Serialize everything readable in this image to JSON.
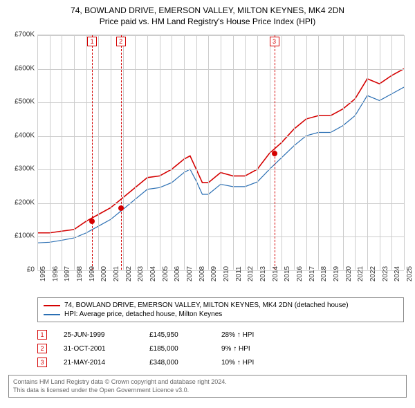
{
  "title": "74, BOWLAND DRIVE, EMERSON VALLEY, MILTON KEYNES, MK4 2DN",
  "subtitle": "Price paid vs. HM Land Registry's House Price Index (HPI)",
  "chart": {
    "type": "line",
    "background_color": "#ffffff",
    "grid_color": "#cccccc",
    "colors": {
      "series1": "#d40000",
      "series2": "#2b6fb3",
      "marker_border": "#d40000"
    },
    "line_width": {
      "series1": 1.6,
      "series2": 1.2
    },
    "ylim": [
      0,
      700000
    ],
    "ytick_step": 100000,
    "y_ticks": [
      "£0",
      "£100K",
      "£200K",
      "£300K",
      "£400K",
      "£500K",
      "£600K",
      "£700K"
    ],
    "xlim": [
      1995,
      2025
    ],
    "x_ticks": [
      1995,
      1996,
      1997,
      1998,
      1999,
      2000,
      2001,
      2002,
      2003,
      2004,
      2005,
      2006,
      2007,
      2008,
      2009,
      2010,
      2011,
      2012,
      2013,
      2014,
      2015,
      2016,
      2017,
      2018,
      2019,
      2020,
      2021,
      2022,
      2023,
      2024,
      2025
    ],
    "series1": {
      "label": "74, BOWLAND DRIVE, EMERSON VALLEY, MILTON KEYNES, MK4 2DN (detached house)",
      "x": [
        1995,
        1996,
        1997,
        1998,
        1999,
        2000,
        2001,
        2002,
        2003,
        2004,
        2005,
        2006,
        2007,
        2007.5,
        2008,
        2008.5,
        2009,
        2010,
        2011,
        2012,
        2013,
        2014,
        2015,
        2016,
        2017,
        2018,
        2019,
        2020,
        2021,
        2022,
        2023,
        2024,
        2025
      ],
      "y": [
        110000,
        110000,
        115000,
        120000,
        145000,
        165000,
        185000,
        215000,
        245000,
        275000,
        280000,
        300000,
        330000,
        340000,
        300000,
        260000,
        260000,
        290000,
        280000,
        280000,
        300000,
        348000,
        380000,
        420000,
        450000,
        460000,
        460000,
        480000,
        510000,
        570000,
        555000,
        580000,
        600000
      ]
    },
    "series2": {
      "label": "HPI: Average price, detached house, Milton Keynes",
      "x": [
        1995,
        1996,
        1997,
        1998,
        1999,
        2000,
        2001,
        2002,
        2003,
        2004,
        2005,
        2006,
        2007,
        2007.5,
        2008,
        2008.5,
        2009,
        2010,
        2011,
        2012,
        2013,
        2014,
        2015,
        2016,
        2017,
        2018,
        2019,
        2020,
        2021,
        2022,
        2023,
        2024,
        2025
      ],
      "y": [
        80000,
        82000,
        88000,
        95000,
        110000,
        130000,
        150000,
        180000,
        210000,
        240000,
        245000,
        260000,
        290000,
        300000,
        265000,
        225000,
        225000,
        255000,
        248000,
        248000,
        262000,
        300000,
        335000,
        370000,
        400000,
        410000,
        410000,
        430000,
        460000,
        520000,
        505000,
        525000,
        545000
      ]
    },
    "markers": [
      {
        "n": "1",
        "x": 1999.48,
        "date": "25-JUN-1999",
        "price": "£145,950",
        "pct": "28% ↑ HPI",
        "y": 145950
      },
      {
        "n": "2",
        "x": 2001.83,
        "date": "31-OCT-2001",
        "price": "£185,000",
        "pct": "9% ↑ HPI",
        "y": 185000
      },
      {
        "n": "3",
        "x": 2014.39,
        "date": "21-MAY-2014",
        "price": "£348,000",
        "pct": "10% ↑ HPI",
        "y": 348000
      }
    ]
  },
  "attribution": {
    "line1": "Contains HM Land Registry data © Crown copyright and database right 2024.",
    "line2": "This data is licensed under the Open Government Licence v3.0."
  }
}
